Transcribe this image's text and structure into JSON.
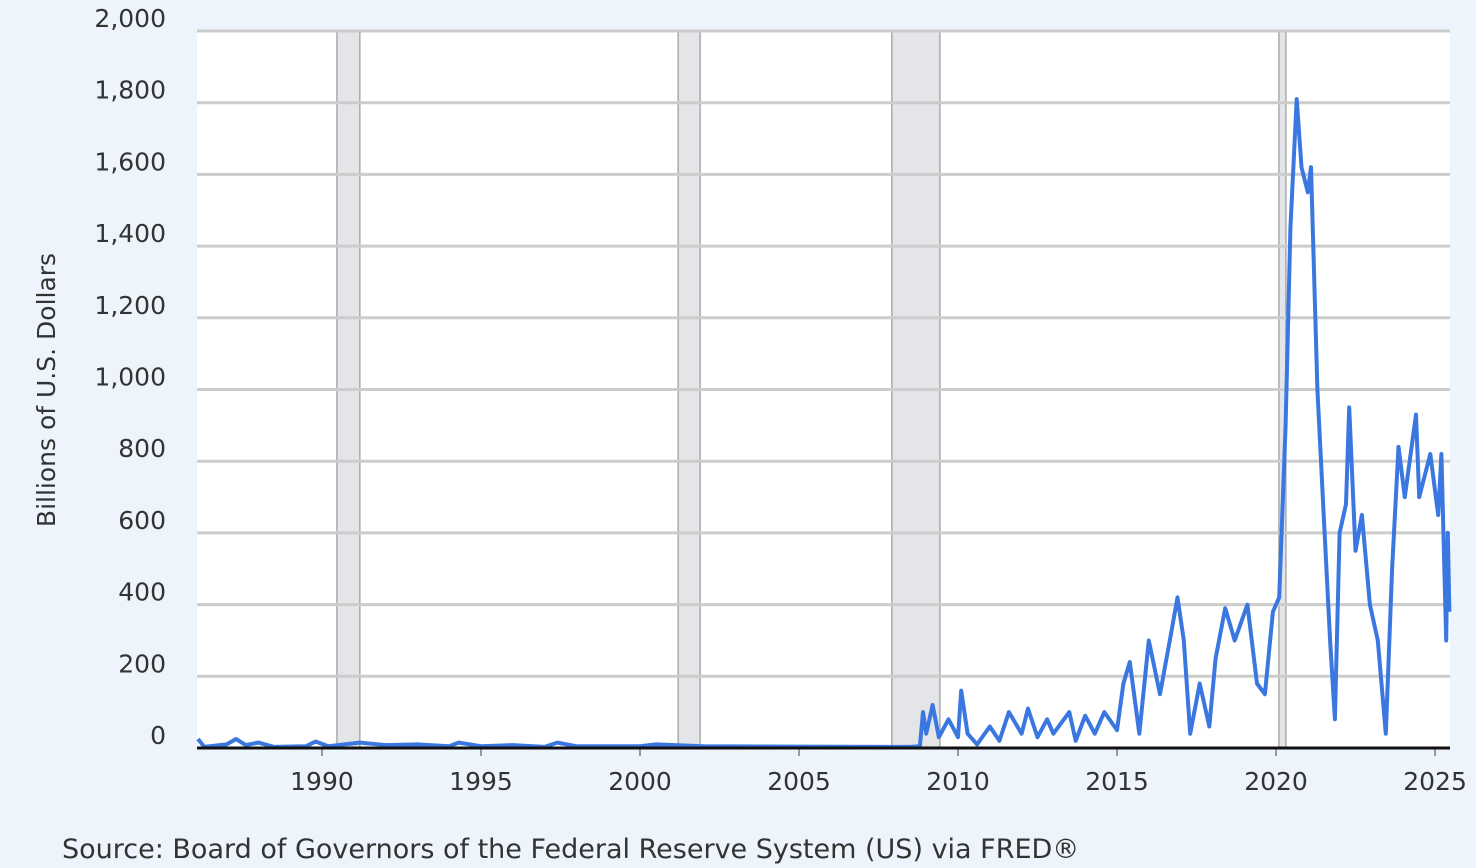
{
  "chart_data": {
    "type": "line",
    "y_axis_label": "Billions of U.S. Dollars",
    "source": "Source: Board of Governors of the Federal Reserve System (US) via FRED®",
    "color": "#3a77e0",
    "recession_color": "#e3e5e8",
    "grid": true,
    "xlim": [
      1986.07,
      2025.47
    ],
    "xticks": [
      1990,
      1995,
      2000,
      2005,
      2010,
      2015,
      2020,
      2025
    ],
    "ylim": [
      0,
      2000
    ],
    "yticks": [
      0,
      200,
      400,
      600,
      800,
      {
        "value": 1000,
        "label": "1,000"
      },
      {
        "value": 1200,
        "label": "1,200"
      },
      {
        "value": 1400,
        "label": "1,400"
      },
      {
        "value": 1600,
        "label": "1,600"
      },
      {
        "value": 1800,
        "label": "1,800"
      },
      {
        "value": 2000,
        "label": "2,000"
      }
    ],
    "recessions": [
      [
        1990.47,
        1991.19
      ],
      [
        2001.2,
        2001.89
      ],
      [
        2007.92,
        2009.43
      ],
      [
        2020.09,
        2020.31
      ]
    ],
    "x": [
      1986.1,
      1986.3,
      1987.0,
      1987.3,
      1987.6,
      1988.0,
      1988.5,
      1989.5,
      1989.8,
      1990.2,
      1991.2,
      1992.0,
      1993.0,
      1994.0,
      1994.3,
      1995.0,
      1996.0,
      1997.0,
      1997.4,
      1998.0,
      2000.0,
      2000.5,
      2002.0,
      2005.0,
      2008.5,
      2008.8,
      2008.9,
      2009.0,
      2009.2,
      2009.4,
      2009.7,
      2010.0,
      2010.1,
      2010.3,
      2010.6,
      2011.0,
      2011.3,
      2011.6,
      2012.0,
      2012.2,
      2012.5,
      2012.8,
      2013.0,
      2013.5,
      2013.7,
      2014.0,
      2014.3,
      2014.6,
      2015.0,
      2015.2,
      2015.4,
      2015.7,
      2016.0,
      2016.35,
      2016.7,
      2016.9,
      2017.1,
      2017.3,
      2017.6,
      2017.9,
      2018.1,
      2018.4,
      2018.7,
      2019.1,
      2019.4,
      2019.65,
      2019.9,
      2020.1,
      2020.3,
      2020.45,
      2020.65,
      2020.8,
      2021.0,
      2021.1,
      2021.3,
      2021.5,
      2021.7,
      2021.85,
      2022.0,
      2022.2,
      2022.3,
      2022.5,
      2022.7,
      2022.95,
      2023.2,
      2023.45,
      2023.65,
      2023.85,
      2024.05,
      2024.4,
      2024.5,
      2024.85,
      2025.1,
      2025.2,
      2025.35,
      2025.4,
      2025.45
    ],
    "values": [
      25,
      3,
      10,
      25,
      8,
      15,
      3,
      5,
      18,
      5,
      15,
      8,
      10,
      5,
      15,
      5,
      8,
      3,
      15,
      5,
      5,
      10,
      5,
      4,
      3,
      5,
      100,
      40,
      120,
      30,
      80,
      30,
      160,
      40,
      10,
      60,
      20,
      100,
      40,
      110,
      30,
      80,
      40,
      100,
      20,
      90,
      40,
      100,
      50,
      180,
      240,
      40,
      300,
      150,
      320,
      420,
      300,
      40,
      180,
      60,
      250,
      390,
      300,
      400,
      180,
      150,
      380,
      420,
      900,
      1450,
      1810,
      1620,
      1550,
      1620,
      1000,
      650,
      300,
      80,
      600,
      680,
      950,
      550,
      650,
      400,
      300,
      40,
      500,
      840,
      700,
      930,
      700,
      820,
      650,
      820,
      300,
      600,
      380
    ]
  }
}
